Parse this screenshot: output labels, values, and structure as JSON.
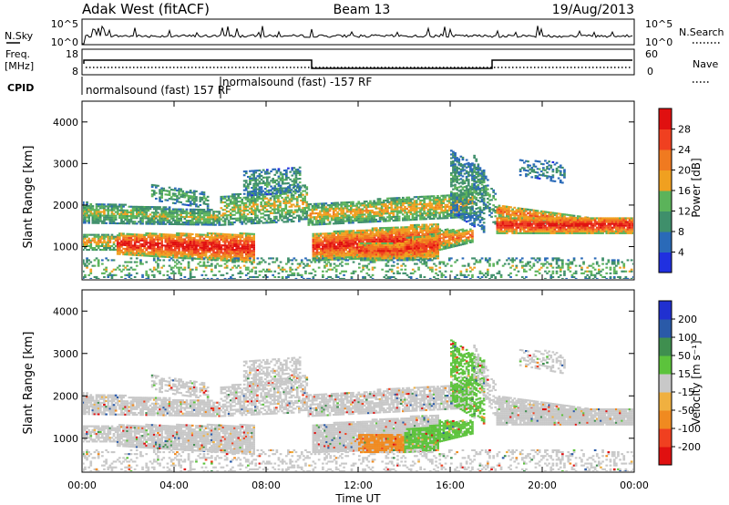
{
  "header": {
    "station": "Adak West (fitACF)",
    "beam": "Beam 13",
    "date": "19/Aug/2013"
  },
  "colors": {
    "axis": "#000000",
    "power_scale": [
      "#2030e0",
      "#2a6ab8",
      "#3f8f6b",
      "#5bb35a",
      "#f0a020",
      "#f07a20",
      "#f04020",
      "#e01010"
    ],
    "velocity_scale": [
      "#e01010",
      "#f04020",
      "#f08a20",
      "#f0b040",
      "#c8c8c8",
      "#5cc33c",
      "#3f8f4f",
      "#2a5aa8",
      "#2030d0"
    ]
  },
  "top_panels": {
    "nsky_label": "N.Sky",
    "nsearch_label": "N.Search",
    "nsky_ticks": [
      "10^5",
      "10^0"
    ],
    "freq_label_1": "Freq.",
    "freq_label_2": "[MHz]",
    "freq_ticks": [
      "18",
      "8"
    ],
    "nave_label": "Nave",
    "nave_ticks": [
      "60",
      "0"
    ],
    "cpid_label": "CPID",
    "cpid_1": "normalsound (fast) 157 RF",
    "cpid_2": "normalsound (fast) -157 RF"
  },
  "chart_data": [
    {
      "type": "heatmap",
      "title": "",
      "xlabel": "Time UT",
      "ylabel": "Slant Range [km]",
      "x_ticks": [
        "00:00",
        "04:00",
        "08:00",
        "12:00",
        "16:00",
        "20:00",
        "00:00"
      ],
      "y_ticks": [
        1000,
        2000,
        3000,
        4000
      ],
      "ylim": [
        200,
        4500
      ],
      "colorbar": {
        "label": "Power [dB]",
        "ticks": [
          4,
          8,
          12,
          16,
          20,
          24,
          28
        ],
        "range": [
          0,
          32
        ]
      }
    },
    {
      "type": "heatmap",
      "title": "",
      "xlabel": "Time UT",
      "ylabel": "Slant Range [km]",
      "x_ticks": [
        "00:00",
        "04:00",
        "08:00",
        "12:00",
        "16:00",
        "20:00",
        "00:00"
      ],
      "y_ticks": [
        1000,
        2000,
        3000,
        4000
      ],
      "ylim": [
        200,
        4500
      ],
      "colorbar": {
        "label": "Velocity [m s⁻¹]",
        "ticks": [
          200,
          100,
          50,
          15,
          -15,
          -50,
          -100,
          -200
        ]
      }
    }
  ]
}
